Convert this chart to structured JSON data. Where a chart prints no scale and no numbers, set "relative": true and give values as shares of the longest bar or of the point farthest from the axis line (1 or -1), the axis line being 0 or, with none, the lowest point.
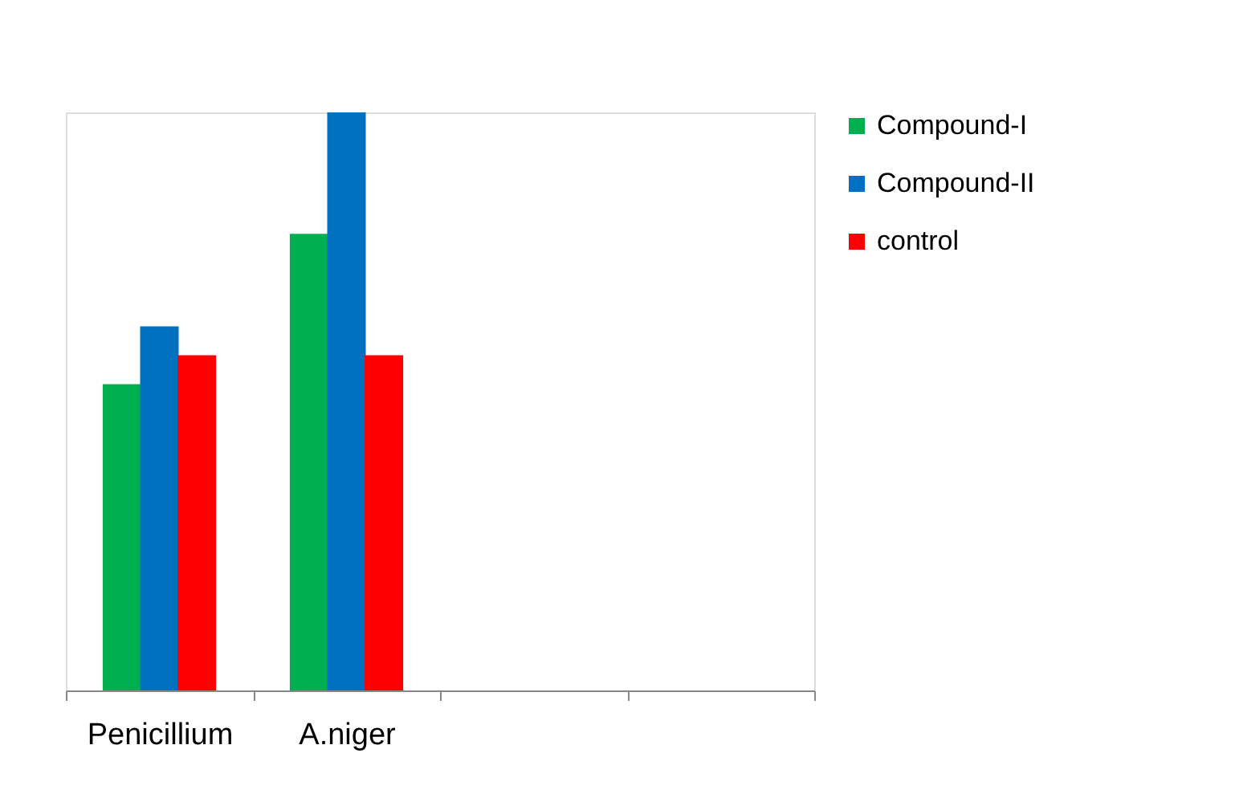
{
  "chart_data": {
    "type": "bar",
    "relative": true,
    "categories": [
      "Penicillium",
      "A.niger",
      null,
      null
    ],
    "series": [
      {
        "name": "Compound-I",
        "color": "#00b050",
        "values": [
          0.53,
          0.79,
          null,
          null
        ]
      },
      {
        "name": "Compound-II",
        "color": "#0070c0",
        "values": [
          0.63,
          1,
          null,
          null
        ]
      },
      {
        "name": "control",
        "color": "#ff0000",
        "values": [
          0.58,
          0.58,
          null,
          null
        ]
      }
    ],
    "legend": "right",
    "grid": false
  }
}
